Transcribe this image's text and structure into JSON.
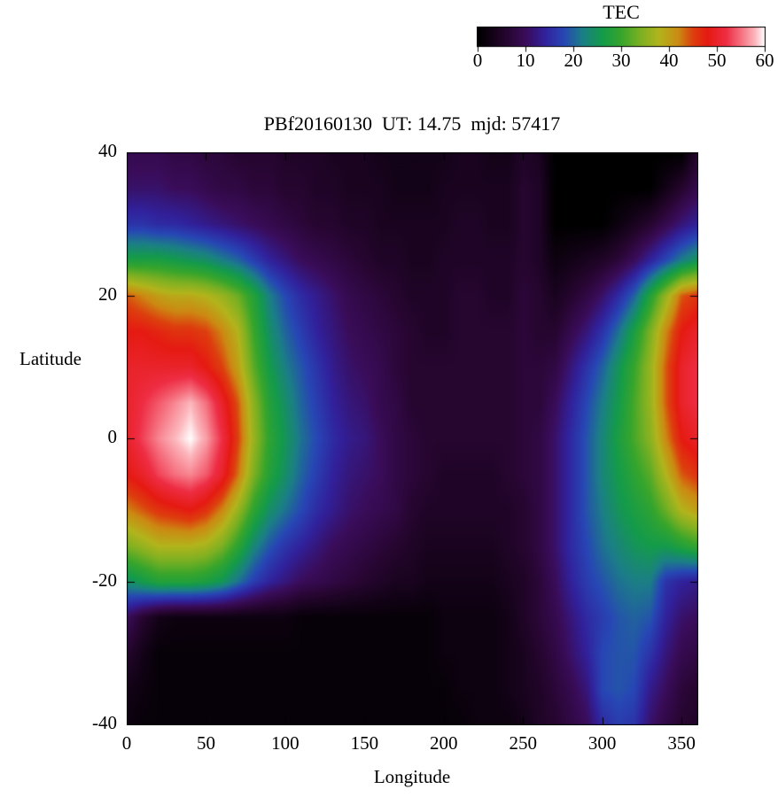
{
  "chart_data": {
    "type": "heatmap",
    "title": "PBf20160130  UT: 14.75  mjd: 57417",
    "xlabel": "Longitude",
    "ylabel": "Latitude",
    "colorbar_label": "TEC",
    "x_range": [
      0,
      360
    ],
    "y_range": [
      -40,
      40
    ],
    "value_range": [
      0,
      60
    ],
    "x_ticks": [
      0,
      50,
      100,
      150,
      200,
      250,
      300,
      350
    ],
    "y_ticks": [
      -40,
      -20,
      0,
      20,
      40
    ],
    "colorbar_ticks": [
      0,
      10,
      20,
      30,
      40,
      50,
      60
    ],
    "lons": [
      0,
      10,
      20,
      30,
      40,
      50,
      60,
      70,
      80,
      90,
      100,
      110,
      120,
      130,
      140,
      150,
      160,
      170,
      180,
      190,
      200,
      210,
      220,
      230,
      240,
      250,
      260,
      270,
      280,
      290,
      300,
      310,
      320,
      330,
      340,
      350,
      360
    ],
    "lats": [
      40,
      35,
      30,
      25,
      20,
      15,
      10,
      5,
      0,
      -5,
      -10,
      -15,
      -20,
      -25,
      -30,
      -35,
      -40
    ],
    "values": [
      [
        9,
        9,
        9,
        8,
        8,
        7,
        7,
        6,
        6,
        6,
        5,
        5,
        5,
        4,
        4,
        4,
        3,
        3,
        3,
        3,
        3,
        4,
        4,
        3,
        3,
        5,
        4,
        0,
        0,
        0,
        0,
        0,
        0,
        0,
        0,
        0,
        6
      ],
      [
        11,
        11,
        11,
        10,
        10,
        9,
        8,
        8,
        7,
        7,
        6,
        6,
        5,
        5,
        4,
        4,
        4,
        3,
        3,
        3,
        4,
        4,
        4,
        4,
        4,
        6,
        5,
        0,
        0,
        0,
        0,
        0,
        0,
        0,
        3,
        6,
        9
      ],
      [
        16,
        16,
        15,
        15,
        14,
        13,
        12,
        11,
        10,
        9,
        8,
        7,
        6,
        6,
        5,
        5,
        4,
        4,
        4,
        4,
        4,
        5,
        5,
        4,
        4,
        6,
        5,
        0,
        0,
        0,
        0,
        2,
        4,
        6,
        9,
        12,
        14
      ],
      [
        27,
        27,
        27,
        26,
        25,
        24,
        22,
        20,
        17,
        14,
        12,
        10,
        9,
        8,
        7,
        6,
        5,
        5,
        4,
        4,
        5,
        5,
        5,
        5,
        5,
        6,
        5,
        2,
        3,
        4,
        5,
        7,
        10,
        14,
        18,
        22,
        25
      ],
      [
        44,
        42,
        40,
        39,
        39,
        38,
        36,
        33,
        28,
        22,
        18,
        15,
        13,
        11,
        9,
        8,
        7,
        6,
        5,
        5,
        5,
        6,
        6,
        5,
        5,
        7,
        6,
        4,
        6,
        8,
        11,
        15,
        20,
        28,
        36,
        44,
        46
      ],
      [
        48,
        48,
        47,
        46,
        46,
        45,
        42,
        38,
        30,
        24,
        20,
        17,
        14,
        12,
        10,
        9,
        8,
        7,
        6,
        5,
        5,
        6,
        6,
        6,
        6,
        7,
        6,
        6,
        9,
        12,
        16,
        21,
        27,
        34,
        42,
        48,
        50
      ],
      [
        50,
        50,
        50,
        50,
        50,
        48,
        45,
        40,
        32,
        26,
        22,
        19,
        16,
        13,
        11,
        10,
        9,
        7,
        6,
        6,
        6,
        6,
        6,
        6,
        6,
        7,
        7,
        8,
        12,
        16,
        20,
        25,
        30,
        36,
        44,
        50,
        52
      ],
      [
        50,
        52,
        54,
        56,
        58,
        55,
        50,
        44,
        35,
        28,
        24,
        20,
        17,
        14,
        12,
        11,
        9,
        8,
        6,
        6,
        6,
        6,
        6,
        6,
        6,
        7,
        7,
        10,
        14,
        18,
        22,
        26,
        31,
        36,
        44,
        50,
        52
      ],
      [
        50,
        53,
        56,
        58,
        60,
        57,
        52,
        45,
        36,
        29,
        25,
        21,
        18,
        15,
        13,
        12,
        10,
        8,
        7,
        6,
        6,
        6,
        6,
        6,
        6,
        7,
        8,
        11,
        15,
        19,
        23,
        27,
        31,
        35,
        42,
        48,
        50
      ],
      [
        48,
        50,
        53,
        55,
        56,
        54,
        50,
        43,
        34,
        28,
        24,
        20,
        17,
        14,
        12,
        11,
        10,
        8,
        7,
        6,
        5,
        5,
        5,
        5,
        6,
        7,
        8,
        11,
        15,
        19,
        23,
        26,
        29,
        32,
        38,
        44,
        46
      ],
      [
        42,
        44,
        46,
        47,
        48,
        46,
        42,
        36,
        29,
        24,
        21,
        18,
        15,
        13,
        11,
        10,
        9,
        8,
        6,
        5,
        5,
        5,
        5,
        5,
        5,
        6,
        8,
        11,
        15,
        19,
        22,
        25,
        27,
        29,
        33,
        38,
        40
      ],
      [
        34,
        36,
        38,
        38,
        38,
        37,
        34,
        29,
        23,
        19,
        16,
        14,
        12,
        10,
        9,
        8,
        7,
        6,
        5,
        4,
        4,
        4,
        4,
        4,
        5,
        6,
        8,
        11,
        15,
        18,
        21,
        23,
        25,
        26,
        26,
        28,
        30
      ],
      [
        24,
        26,
        28,
        28,
        28,
        27,
        25,
        21,
        17,
        14,
        12,
        10,
        9,
        8,
        7,
        6,
        5,
        4,
        4,
        3,
        3,
        3,
        3,
        3,
        4,
        5,
        7,
        10,
        14,
        17,
        19,
        21,
        22,
        22,
        16,
        14,
        13
      ],
      [
        10,
        6,
        3,
        2,
        2,
        2,
        2,
        2,
        2,
        2,
        2,
        1,
        1,
        1,
        1,
        1,
        1,
        1,
        1,
        1,
        2,
        2,
        2,
        2,
        3,
        5,
        7,
        9,
        12,
        15,
        17,
        19,
        20,
        19,
        14,
        11,
        10
      ],
      [
        6,
        3,
        1,
        1,
        1,
        1,
        1,
        1,
        1,
        1,
        1,
        1,
        1,
        1,
        1,
        1,
        1,
        1,
        1,
        1,
        2,
        2,
        2,
        2,
        3,
        4,
        6,
        8,
        11,
        14,
        18,
        19,
        19,
        16,
        12,
        9,
        8
      ],
      [
        3,
        2,
        1,
        1,
        1,
        1,
        1,
        1,
        1,
        1,
        1,
        1,
        1,
        1,
        1,
        1,
        1,
        1,
        1,
        1,
        1,
        2,
        2,
        2,
        3,
        4,
        5,
        7,
        9,
        12,
        18,
        19,
        18,
        13,
        10,
        7,
        6
      ],
      [
        2,
        1,
        1,
        1,
        1,
        1,
        1,
        1,
        1,
        1,
        1,
        1,
        1,
        1,
        1,
        1,
        1,
        1,
        1,
        1,
        1,
        1,
        2,
        2,
        2,
        3,
        5,
        6,
        8,
        10,
        15,
        17,
        16,
        11,
        8,
        6,
        5
      ]
    ],
    "palette": [
      [
        0,
        "#000000"
      ],
      [
        6,
        "#26052f"
      ],
      [
        10,
        "#3a0c59"
      ],
      [
        14,
        "#31219b"
      ],
      [
        18,
        "#2746b5"
      ],
      [
        22,
        "#1b7f86"
      ],
      [
        26,
        "#149b4a"
      ],
      [
        30,
        "#36a52c"
      ],
      [
        34,
        "#7cb022"
      ],
      [
        38,
        "#b2b41c"
      ],
      [
        42,
        "#cc8912"
      ],
      [
        45,
        "#dd3f0e"
      ],
      [
        48,
        "#e51a12"
      ],
      [
        52,
        "#ee2d44"
      ],
      [
        55,
        "#f56f7e"
      ],
      [
        58,
        "#fcb7bd"
      ],
      [
        60,
        "#ffffff"
      ]
    ],
    "grid": "off",
    "legend_position": "colorbar-top-right"
  }
}
